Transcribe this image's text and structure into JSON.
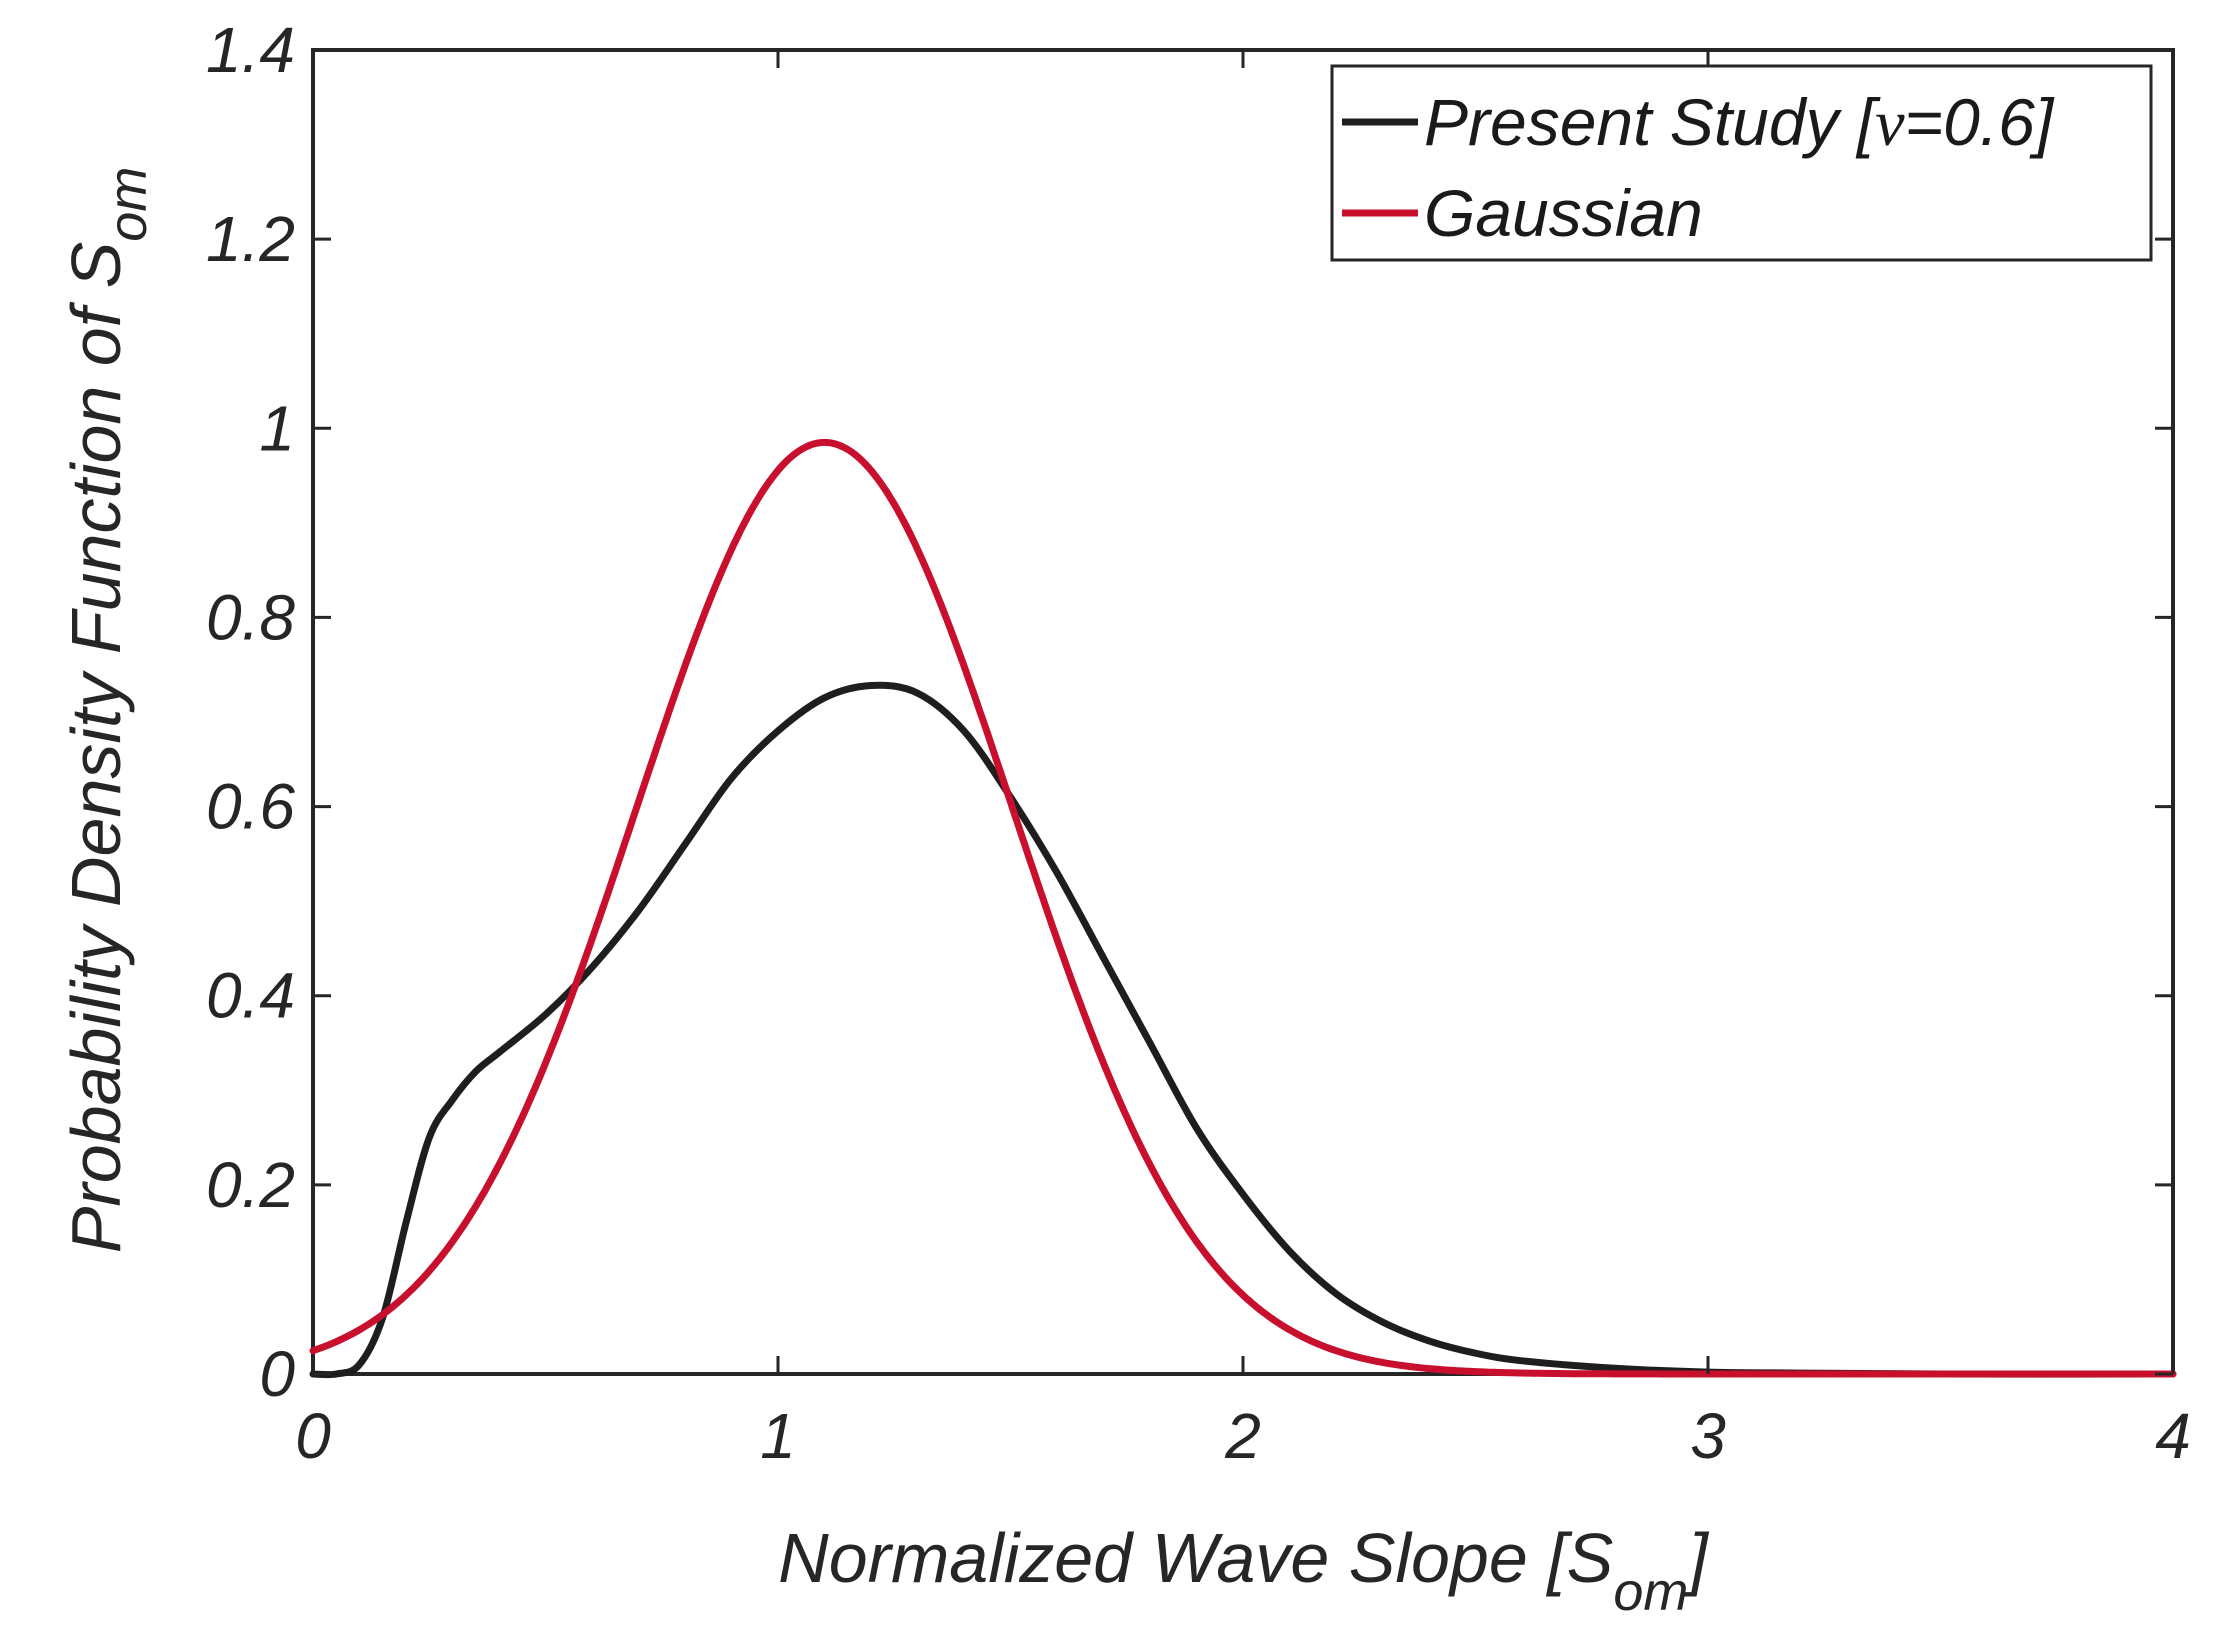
{
  "chart_data": {
    "type": "line",
    "title": "",
    "xlabel": {
      "main": "Normalized Wave Slope [S",
      "subscript": "om",
      "suffix": "]"
    },
    "ylabel": {
      "main": "Probability Density Function of S",
      "subscript": "om"
    },
    "xlim": [
      0,
      4
    ],
    "ylim": [
      0,
      1.4
    ],
    "xticks": [
      0,
      1,
      2,
      3,
      4
    ],
    "xtick_labels": [
      "0",
      "1",
      "2",
      "3",
      "4"
    ],
    "yticks": [
      0,
      0.2,
      0.4,
      0.6,
      0.8,
      1.0,
      1.2,
      1.4
    ],
    "ytick_labels": [
      "0",
      "0.2",
      "0.4",
      "0.6",
      "0.8",
      "1",
      "1.2",
      "1.4"
    ],
    "grid": false,
    "legend_position": "top-right",
    "series": [
      {
        "name": "Present Study [ν=0.6]",
        "legend_label": {
          "prefix": "Present Study [",
          "symbol": "ν",
          "suffix": "=0.6]"
        },
        "color": "#1e1e1e",
        "x": [
          0,
          0.05,
          0.1,
          0.15,
          0.2,
          0.25,
          0.3,
          0.35,
          0.4,
          0.5,
          0.6,
          0.7,
          0.8,
          0.9,
          1.0,
          1.1,
          1.2,
          1.3,
          1.4,
          1.5,
          1.6,
          1.7,
          1.8,
          1.9,
          2.0,
          2.1,
          2.2,
          2.3,
          2.4,
          2.5,
          2.6,
          2.8,
          3.0,
          3.2,
          3.5,
          4.0
        ],
        "y": [
          0.0,
          0.0,
          0.01,
          0.06,
          0.16,
          0.25,
          0.29,
          0.32,
          0.34,
          0.38,
          0.43,
          0.49,
          0.56,
          0.63,
          0.68,
          0.715,
          0.728,
          0.72,
          0.68,
          0.61,
          0.53,
          0.44,
          0.35,
          0.26,
          0.19,
          0.13,
          0.085,
          0.055,
          0.035,
          0.022,
          0.014,
          0.006,
          0.002,
          0.001,
          0.0,
          0.0
        ]
      },
      {
        "name": "Gaussian",
        "legend_label": {
          "prefix": "Gaussian",
          "symbol": "",
          "suffix": ""
        },
        "color": "#c8102e",
        "mean": 1.1,
        "sd": 0.405,
        "x": [
          0,
          0.1,
          0.2,
          0.3,
          0.4,
          0.5,
          0.6,
          0.7,
          0.8,
          0.9,
          1.0,
          1.1,
          1.2,
          1.3,
          1.4,
          1.5,
          1.6,
          1.7,
          1.8,
          1.9,
          2.0,
          2.1,
          2.2,
          2.3,
          2.4,
          2.5,
          2.6,
          2.8,
          3.0,
          3.5,
          4.0
        ],
        "y": [
          0.025,
          0.047,
          0.08,
          0.14,
          0.22,
          0.33,
          0.46,
          0.6,
          0.74,
          0.87,
          0.95,
          0.985,
          0.95,
          0.87,
          0.74,
          0.6,
          0.46,
          0.33,
          0.22,
          0.14,
          0.08,
          0.047,
          0.025,
          0.012,
          0.005,
          0.002,
          0.001,
          0.0,
          0.0,
          0.0,
          0.0
        ]
      }
    ]
  }
}
